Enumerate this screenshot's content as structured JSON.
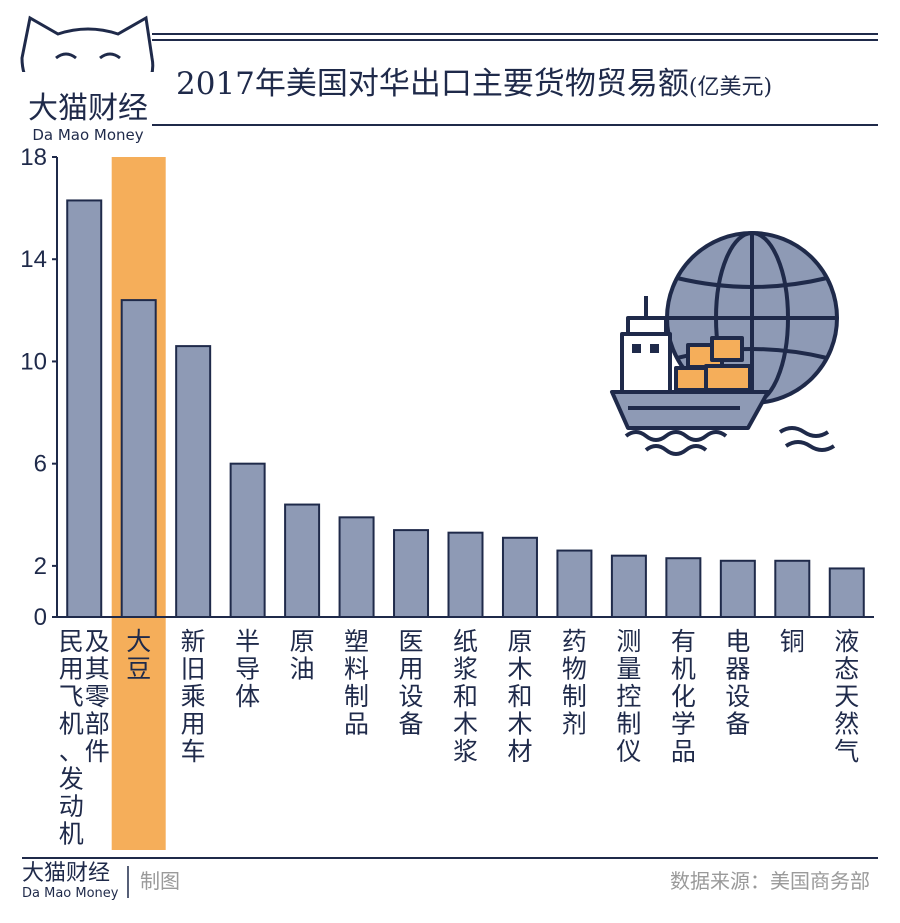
{
  "brand": {
    "name_cn": "大猫财经",
    "name_en": "Da Mao Money"
  },
  "footer": {
    "brand_cn": "大猫财经",
    "brand_en": "Da Mao Money",
    "made": "制图",
    "source": "数据来源：美国商务部"
  },
  "colors": {
    "bar": "#8e9ab5",
    "highlight": "#f5ae5a",
    "ink": "#1f2a4a",
    "bar_stroke": "#1f2a4a"
  },
  "chart_data": {
    "type": "bar",
    "title": "2017年美国对华出口主要货物贸易额",
    "unit": "(亿美元)",
    "categories": [
      "民用飞机、发动机及其零部件",
      "大豆",
      "新旧乘用车",
      "半导体",
      "原油",
      "塑料制品",
      "医用设备",
      "纸浆和木浆",
      "原木和木材",
      "药物制剂",
      "测量控制仪",
      "有机化学品",
      "电器设备",
      "铜",
      "液态天然气"
    ],
    "category_label_lines": [
      [
        "民",
        "用",
        "飞",
        "机",
        "、",
        "发",
        "动",
        "机"
      ],
      [
        "大",
        "豆"
      ],
      [
        "新",
        "旧",
        "乘",
        "用",
        "车"
      ],
      [
        "半",
        "导",
        "体"
      ],
      [
        "原",
        "油"
      ],
      [
        "塑",
        "料",
        "制",
        "品"
      ],
      [
        "医",
        "用",
        "设",
        "备"
      ],
      [
        "纸",
        "浆",
        "和",
        "木",
        "浆"
      ],
      [
        "原",
        "木",
        "和",
        "木",
        "材"
      ],
      [
        "药",
        "物",
        "制",
        "剂"
      ],
      [
        "测",
        "量",
        "控",
        "制",
        "仪"
      ],
      [
        "有",
        "机",
        "化",
        "学",
        "品"
      ],
      [
        "电",
        "器",
        "设",
        "备"
      ],
      [
        "铜"
      ],
      [
        "液",
        "态",
        "天",
        "然",
        "气"
      ]
    ],
    "secondary_label_lines": {
      "0": [
        "及",
        "其",
        "零",
        "部",
        "件"
      ]
    },
    "values": [
      16.3,
      12.4,
      10.6,
      6.0,
      4.4,
      3.9,
      3.4,
      3.3,
      3.1,
      2.6,
      2.4,
      2.3,
      2.2,
      2.2,
      1.9
    ],
    "highlight_category": "大豆",
    "yticks": [
      0,
      2,
      6,
      10,
      14,
      18
    ],
    "ylim": [
      0,
      18
    ],
    "xlabel": "",
    "ylabel": ""
  }
}
